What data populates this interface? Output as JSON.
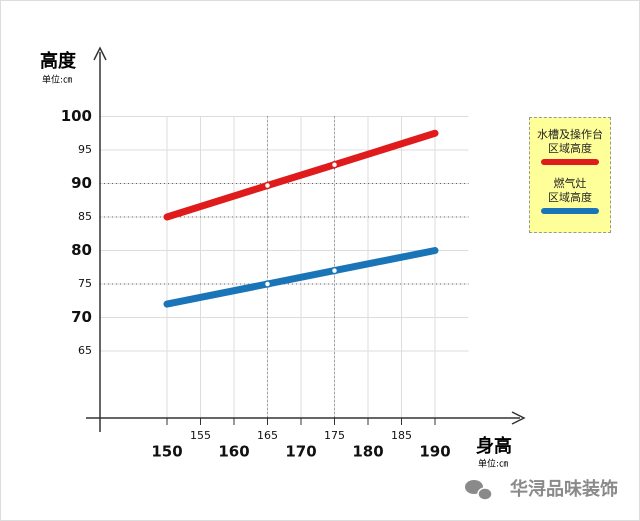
{
  "chart_data": {
    "type": "line",
    "y_label": "高度",
    "y_unit": "单位:㎝",
    "x_label": "身高",
    "x_unit": "单位:㎝",
    "xlim": [
      140,
      195
    ],
    "ylim": [
      55,
      100
    ],
    "xticks": [
      150,
      155,
      160,
      165,
      170,
      175,
      180,
      185,
      190
    ],
    "yticks": [
      65,
      70,
      75,
      80,
      85,
      90,
      95,
      100
    ],
    "grid": true,
    "reference_lines_x": [
      165,
      175
    ],
    "reference_lines_y": [
      90,
      85,
      75
    ],
    "x": [
      150,
      165,
      175,
      190
    ],
    "series": [
      {
        "name": "水槽及操作台\n区域高度",
        "color": "#e01b1b",
        "values": [
          85,
          89.7,
          92.8,
          97.5
        ]
      },
      {
        "name": "燃气灶\n区域高度",
        "color": "#1a74b8",
        "values": [
          72,
          75,
          77,
          80
        ]
      }
    ],
    "legend": "right",
    "watermark": "华浔品味装饰"
  }
}
